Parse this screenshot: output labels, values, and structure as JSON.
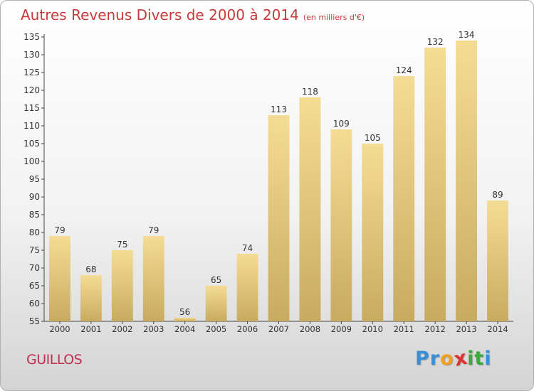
{
  "chart_data": {
    "type": "bar",
    "title": "Autres Revenus Divers de 2000 à 2014",
    "subtitle": "(en milliers d'€)",
    "categories": [
      "2000",
      "2001",
      "2002",
      "2003",
      "2004",
      "2005",
      "2006",
      "2007",
      "2008",
      "2009",
      "2010",
      "2011",
      "2012",
      "2013",
      "2014"
    ],
    "values": [
      79,
      68,
      75,
      79,
      56,
      65,
      74,
      113,
      118,
      109,
      105,
      124,
      132,
      134,
      89
    ],
    "ylim": [
      55,
      135
    ],
    "yticks": [
      55,
      60,
      65,
      70,
      75,
      80,
      85,
      90,
      95,
      100,
      105,
      110,
      115,
      120,
      125,
      130,
      135
    ],
    "xlabel": "",
    "ylabel": "",
    "grid": false,
    "data_labels": true,
    "bar_color": "#e8cd84"
  },
  "footer": {
    "commune": "GUILLOS",
    "logo_letters": [
      "P",
      "r",
      "o",
      "x",
      "i",
      "t",
      "i"
    ],
    "logo_colors": [
      "#3a8fd4",
      "#3a8fd4",
      "#f0a020",
      "#e03030",
      "#3aaa3a",
      "#3aaa3a",
      "#3a8fd4"
    ]
  },
  "colors": {
    "title": "#c83a3a",
    "commune": "#c0304f",
    "axis": "#444444"
  }
}
